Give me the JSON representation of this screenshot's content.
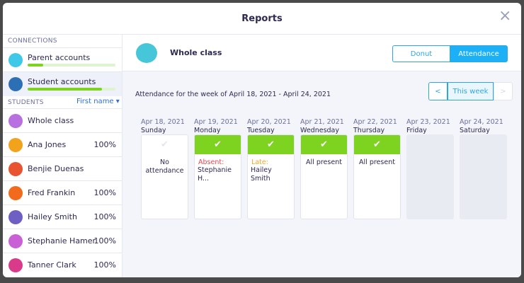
{
  "header": {
    "title": "Reports",
    "close": "×"
  },
  "sidebar": {
    "connections_label": "CONNECTIONS",
    "connections": [
      {
        "label": "Parent accounts",
        "progress": 18,
        "color": "#3fc9e8"
      },
      {
        "label": "Student accounts",
        "progress": 85,
        "color": "#2d6fb5"
      }
    ],
    "students_label": "STUDENTS",
    "sort": "First name",
    "students": [
      {
        "name": "Whole class",
        "color": "#b86fe0"
      },
      {
        "name": "Ana Jones",
        "percent": "100%",
        "color": "#f2a21b"
      },
      {
        "name": "Benjie Duenas",
        "color": "#e8542f"
      },
      {
        "name": "Fred Frankin",
        "percent": "100%",
        "color": "#f26a1b"
      },
      {
        "name": "Hailey Smith",
        "percent": "100%",
        "color": "#6d5fc4"
      },
      {
        "name": "Stephanie Hamer",
        "percent": "100%",
        "color": "#c960d6"
      },
      {
        "name": "Tanner Clark",
        "percent": "100%",
        "color": "#d93a8a"
      }
    ]
  },
  "main": {
    "class_name": "Whole class",
    "tabs": [
      "Donut",
      "Attendance"
    ],
    "active_tab": 1,
    "week_label": "Attendance for the week of April 18, 2021 - April 24, 2021",
    "nav": {
      "prev": "<",
      "current": "This week",
      "next": ">"
    },
    "check": "✔",
    "days": [
      {
        "date": "Apr 18, 2021",
        "day": "Sunday",
        "header_color": "#ffffff",
        "text": "No attendance"
      },
      {
        "date": "Apr 19, 2021",
        "day": "Monday",
        "header_color": "#7ed321",
        "note": "Absent:",
        "note_color": "#e5484d",
        "text": "Stephanie H..."
      },
      {
        "date": "Apr 20, 2021",
        "day": "Tuesday",
        "header_color": "#7ed321",
        "note": "Late:",
        "note_color": "#f5a623",
        "text": "Hailey Smith"
      },
      {
        "date": "Apr 21, 2021",
        "day": "Wednesday",
        "header_color": "#7ed321",
        "text": "All present"
      },
      {
        "date": "Apr 22, 2021",
        "day": "Thursday",
        "header_color": "#7ed321",
        "text": "All present"
      },
      {
        "date": "Apr 23, 2021",
        "day": "Friday"
      },
      {
        "date": "Apr 24, 2021",
        "day": "Saturday"
      }
    ]
  }
}
